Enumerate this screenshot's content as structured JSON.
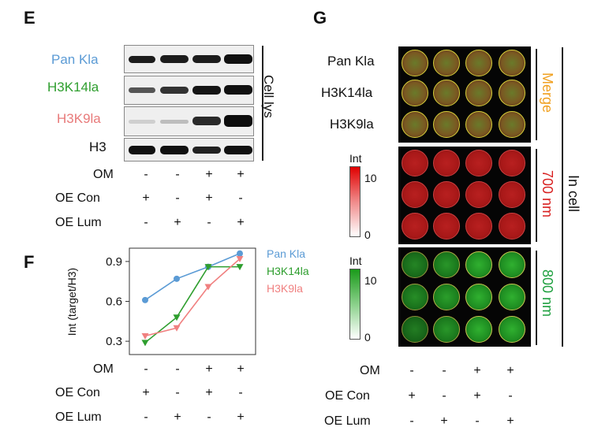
{
  "panel_e": {
    "letter": "E",
    "rows": [
      {
        "label": "Pan Kla",
        "color": "#5b9bd5"
      },
      {
        "label": "H3K14la",
        "color": "#2e9e2e"
      },
      {
        "label": "H3K9la",
        "color": "#e87a7a"
      },
      {
        "label": "H3",
        "color": "#111111"
      }
    ],
    "side_label": "Cell lys",
    "conditions": [
      {
        "label": "OM",
        "signs": [
          "-",
          "-",
          "+",
          "+"
        ]
      },
      {
        "label": "OE Con",
        "signs": [
          "+",
          "-",
          "+",
          "-"
        ]
      },
      {
        "label": "OE Lum",
        "signs": [
          "-",
          "+",
          "-",
          "+"
        ]
      }
    ]
  },
  "panel_f": {
    "letter": "F",
    "conditions": [
      {
        "label": "OM",
        "signs": [
          "-",
          "-",
          "+",
          "+"
        ]
      },
      {
        "label": "OE Con",
        "signs": [
          "+",
          "-",
          "+",
          "-"
        ]
      },
      {
        "label": "OE Lum",
        "signs": [
          "-",
          "+",
          "-",
          "+"
        ]
      }
    ]
  },
  "panel_g": {
    "letter": "G",
    "row_labels": [
      "Pan Kla",
      "H3K14la",
      "H3K9la"
    ],
    "merge_label": "Merge",
    "nm700_label": "700 nm",
    "nm800_label": "800 nm",
    "side_label": "In cell",
    "colorbar_title": "Int",
    "colorbar_max": "10",
    "colorbar_min": "0",
    "conditions": [
      {
        "label": "OM",
        "signs": [
          "-",
          "-",
          "+",
          "+"
        ]
      },
      {
        "label": "OE Con",
        "signs": [
          "+",
          "-",
          "+",
          "-"
        ]
      },
      {
        "label": "OE Lum",
        "signs": [
          "-",
          "+",
          "-",
          "+"
        ]
      }
    ]
  },
  "chart_data": {
    "type": "line",
    "ylabel": "Int (target/H3)",
    "ylim": [
      0.2,
      1.0
    ],
    "y_ticks": [
      "0.3",
      "0.6",
      "0.9"
    ],
    "x": [
      1,
      2,
      3,
      4
    ],
    "series": [
      {
        "name": "Pan Kla",
        "color": "#5b9bd5",
        "marker": "circle",
        "values": [
          0.61,
          0.77,
          0.86,
          0.96
        ]
      },
      {
        "name": "H3K14la",
        "color": "#2e9e2e",
        "marker": "triangle",
        "values": [
          0.29,
          0.48,
          0.86,
          0.86
        ]
      },
      {
        "name": "H3K9la",
        "color": "#f08080",
        "marker": "triangle",
        "values": [
          0.34,
          0.4,
          0.71,
          0.92
        ]
      }
    ]
  }
}
